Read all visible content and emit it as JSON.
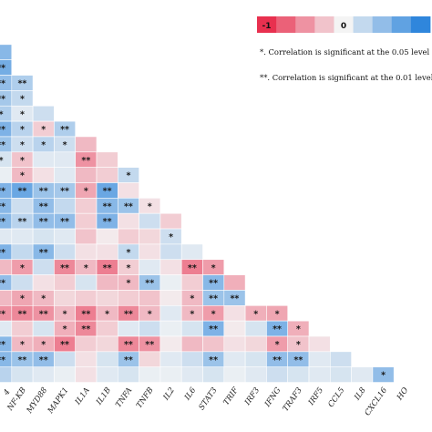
{
  "chart_data": {
    "type": "heatmap",
    "title": "",
    "colors": {
      "negative": "#e8304f",
      "neutral": "#f4f4f4",
      "positive": "#2f86dc"
    },
    "legend": {
      "min_label": "-1",
      "mid_label": "0"
    },
    "notes": [
      "*. Correlation is significant at the 0.05 level",
      "**. Correlation is significant at the 0.01 level"
    ],
    "x_labels": [
      "NF-KB",
      "MYD88",
      "MAPK1",
      "IL1A",
      "IL1B",
      "TNFA",
      "TNFB",
      "IL2",
      "IL6",
      "STAT3",
      "TRIF",
      "IRF3",
      "IFNG",
      "TRAF3",
      "IRF5",
      "CCL5",
      "IL8",
      "CXCL16",
      "HO"
    ],
    "partial_x_label": "4",
    "rows": [
      [],
      [
        "-"
      ],
      [
        "**"
      ],
      [
        "**",
        "**"
      ],
      [
        "**",
        "*"
      ],
      [
        "*",
        "*",
        ""
      ],
      [
        "**",
        "*",
        "*",
        "**"
      ],
      [
        "**",
        "*",
        "*",
        "*",
        ""
      ],
      [
        "*",
        "*",
        "",
        "",
        "**",
        ""
      ],
      [
        "",
        "*",
        "",
        "",
        "",
        "",
        "*"
      ],
      [
        "**",
        "**",
        "**",
        "**",
        "*",
        "**",
        ""
      ],
      [
        "**",
        "",
        "**",
        "",
        "",
        "**",
        "**",
        "*"
      ],
      [
        "**",
        "**",
        "**",
        "**",
        "",
        "**",
        "",
        "",
        ""
      ],
      [
        "",
        "",
        "",
        "",
        "",
        "",
        "",
        "",
        "*"
      ],
      [
        "**",
        "",
        "**",
        "",
        "",
        "",
        "*",
        "",
        "",
        ""
      ],
      [
        "",
        "*",
        "",
        "**",
        "*",
        "**",
        "*",
        "",
        "",
        "**",
        "*"
      ],
      [
        "**",
        "",
        "",
        "",
        "",
        "",
        "*",
        "**",
        "",
        "",
        "**",
        ""
      ],
      [
        "",
        "*",
        "*",
        "",
        "",
        "",
        "",
        "",
        "",
        "*",
        "**",
        "**"
      ],
      [
        "**",
        "**",
        "**",
        "*",
        "**",
        "*",
        "**",
        "*",
        "",
        "*",
        "*",
        "",
        "*",
        "*"
      ],
      [
        "",
        "",
        "",
        "*",
        "**",
        "",
        "",
        "",
        "",
        "",
        "**",
        "",
        "",
        "**",
        "*"
      ],
      [
        "**",
        "*",
        "*",
        "**",
        "",
        "",
        "**",
        "**",
        "",
        "",
        "",
        "",
        "",
        "*",
        "*",
        ""
      ],
      [
        "**",
        "**",
        "**",
        "",
        "",
        "",
        "**",
        "",
        "",
        "",
        "**",
        "",
        "",
        "**",
        "**",
        "",
        ""
      ],
      [
        "",
        "",
        "",
        "",
        "",
        "",
        "",
        "",
        "",
        "",
        "",
        "",
        "",
        "",
        "",
        "",
        "",
        "",
        "*"
      ]
    ],
    "values": [
      [],
      [
        0.55
      ],
      [
        0.65
      ],
      [
        0.5,
        0.35
      ],
      [
        0.4,
        0.25
      ],
      [
        0.35,
        0.1,
        0.2
      ],
      [
        0.6,
        0.3,
        -0.2,
        0.35
      ],
      [
        0.45,
        0.2,
        0.3,
        0.2,
        -0.3
      ],
      [
        0.15,
        -0.25,
        0.1,
        0.1,
        -0.5,
        -0.2
      ],
      [
        0.05,
        -0.3,
        -0.1,
        0.1,
        -0.3,
        -0.2,
        0.25
      ],
      [
        0.6,
        0.7,
        0.45,
        0.4,
        -0.4,
        0.7,
        -0.1
      ],
      [
        0.55,
        0.2,
        0.5,
        0.25,
        -0.2,
        0.55,
        0.45,
        -0.1
      ],
      [
        0.55,
        0.3,
        0.5,
        0.5,
        -0.2,
        0.6,
        -0.1,
        0.2,
        -0.2
      ],
      [
        0.1,
        0.1,
        0.15,
        0.1,
        -0.25,
        -0.05,
        -0.2,
        -0.15,
        0.2
      ],
      [
        0.6,
        0.25,
        0.55,
        0.2,
        -0.1,
        -0.1,
        0.25,
        -0.1,
        0.2,
        0.1
      ],
      [
        -0.3,
        -0.45,
        0.2,
        -0.55,
        -0.3,
        -0.6,
        -0.2,
        0.1,
        -0.1,
        -0.6,
        -0.45
      ],
      [
        0.5,
        0.2,
        -0.1,
        -0.2,
        0.15,
        -0.3,
        -0.3,
        0.45,
        0.05,
        -0.2,
        0.55,
        -0.35
      ],
      [
        -0.3,
        -0.4,
        -0.3,
        -0.15,
        -0.2,
        -0.15,
        -0.2,
        -0.25,
        -0.05,
        -0.3,
        0.45,
        0.45
      ],
      [
        -0.5,
        -0.55,
        -0.5,
        -0.3,
        -0.6,
        -0.3,
        -0.55,
        -0.3,
        0.1,
        -0.3,
        -0.45,
        -0.1,
        -0.35,
        -0.4
      ],
      [
        0.1,
        -0.2,
        0.15,
        -0.35,
        -0.55,
        -0.2,
        0.1,
        0.2,
        0.05,
        0.15,
        0.6,
        -0.05,
        0.15,
        0.6,
        -0.35
      ],
      [
        0.55,
        -0.3,
        -0.35,
        -0.6,
        -0.2,
        -0.15,
        -0.55,
        -0.5,
        -0.05,
        -0.3,
        -0.25,
        -0.1,
        -0.15,
        -0.45,
        -0.25,
        -0.1
      ],
      [
        0.55,
        0.45,
        0.5,
        0.2,
        -0.1,
        0.15,
        0.45,
        -0.15,
        0.1,
        0.2,
        0.45,
        0.1,
        0.15,
        0.5,
        0.5,
        0.1,
        0.2
      ],
      [
        0.3,
        0.15,
        0.1,
        0.05,
        -0.1,
        0.1,
        0.15,
        0.05,
        0.05,
        0.1,
        0.15,
        0.05,
        0.1,
        0.2,
        0.15,
        0.1,
        0.15,
        0.1,
        0.5
      ]
    ]
  }
}
